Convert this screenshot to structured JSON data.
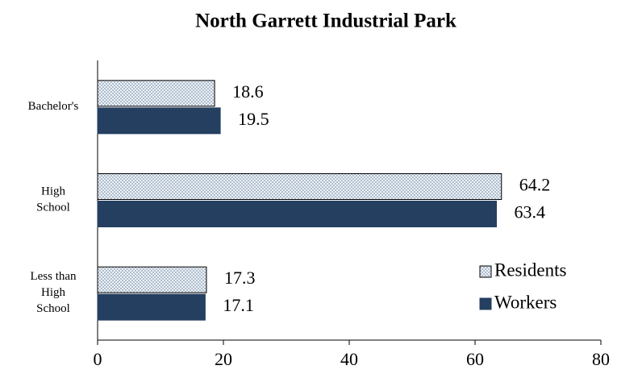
{
  "chart_data": {
    "type": "hbar",
    "title": "North Garrett Industrial Park",
    "categories": [
      "Bachelor's",
      "High School",
      "Less than High School"
    ],
    "series": [
      {
        "name": "Residents",
        "color": "#d9e2ec",
        "values": [
          18.6,
          64.2,
          17.3
        ]
      },
      {
        "name": "Workers",
        "color": "#243f60",
        "values": [
          19.5,
          63.4,
          17.1
        ]
      }
    ],
    "xlim": [
      0,
      80
    ],
    "xticks": [
      0,
      20,
      40,
      60,
      80
    ],
    "legend": "lower right"
  }
}
